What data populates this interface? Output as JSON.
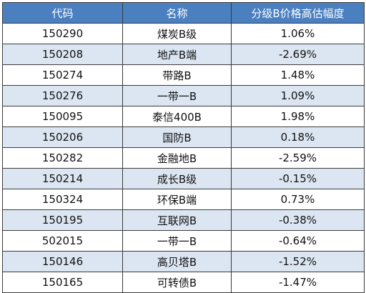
{
  "table": {
    "headers": [
      "代码",
      "名称",
      "分级B价格高估幅度"
    ],
    "rows": [
      {
        "code": "150290",
        "name": "煤炭B级",
        "pct": "1.06%"
      },
      {
        "code": "150208",
        "name": "地产B端",
        "pct": "-2.69%"
      },
      {
        "code": "150274",
        "name": "带路B",
        "pct": "1.48%"
      },
      {
        "code": "150276",
        "name": "一带一B",
        "pct": "1.09%"
      },
      {
        "code": "150095",
        "name": "泰信400B",
        "pct": "1.98%"
      },
      {
        "code": "150206",
        "name": "国防B",
        "pct": "0.18%"
      },
      {
        "code": "150282",
        "name": "金融地B",
        "pct": "-2.59%"
      },
      {
        "code": "150214",
        "name": "成长B级",
        "pct": "-0.15%"
      },
      {
        "code": "150324",
        "name": "环保B端",
        "pct": "0.73%"
      },
      {
        "code": "150195",
        "name": "互联网B",
        "pct": "-0.38%"
      },
      {
        "code": "502015",
        "name": "一带一B",
        "pct": "-0.64%"
      },
      {
        "code": "150146",
        "name": "高贝塔B",
        "pct": "-1.52%"
      },
      {
        "code": "150165",
        "name": "可转债B",
        "pct": "-1.47%"
      }
    ]
  },
  "colors": {
    "header_bg": "#4a7fc0",
    "header_text": "#ffffff",
    "stripe_bg": "#dce6f2",
    "border": "#3a3a3a"
  }
}
